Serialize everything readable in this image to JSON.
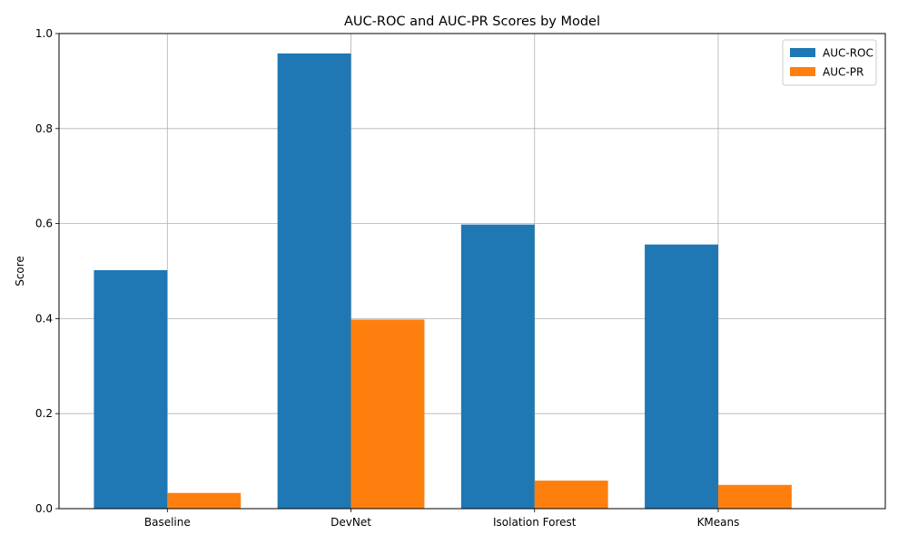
{
  "chart_data": {
    "type": "bar",
    "title": "AUC-ROC and AUC-PR Scores by Model",
    "xlabel": "",
    "ylabel": "Score",
    "categories": [
      "Baseline",
      "DevNet",
      "Isolation Forest",
      "KMeans"
    ],
    "series": [
      {
        "name": "AUC-ROC",
        "color": "#1f77b4",
        "values": [
          0.502,
          0.958,
          0.598,
          0.556
        ]
      },
      {
        "name": "AUC-PR",
        "color": "#ff7f0e",
        "values": [
          0.033,
          0.398,
          0.059,
          0.05
        ]
      }
    ],
    "ylim": [
      0,
      1.0
    ],
    "yticks": [
      "0.0",
      "0.2",
      "0.4",
      "0.6",
      "0.8",
      "1.0"
    ],
    "grid": true,
    "legend_position": "top-right"
  }
}
